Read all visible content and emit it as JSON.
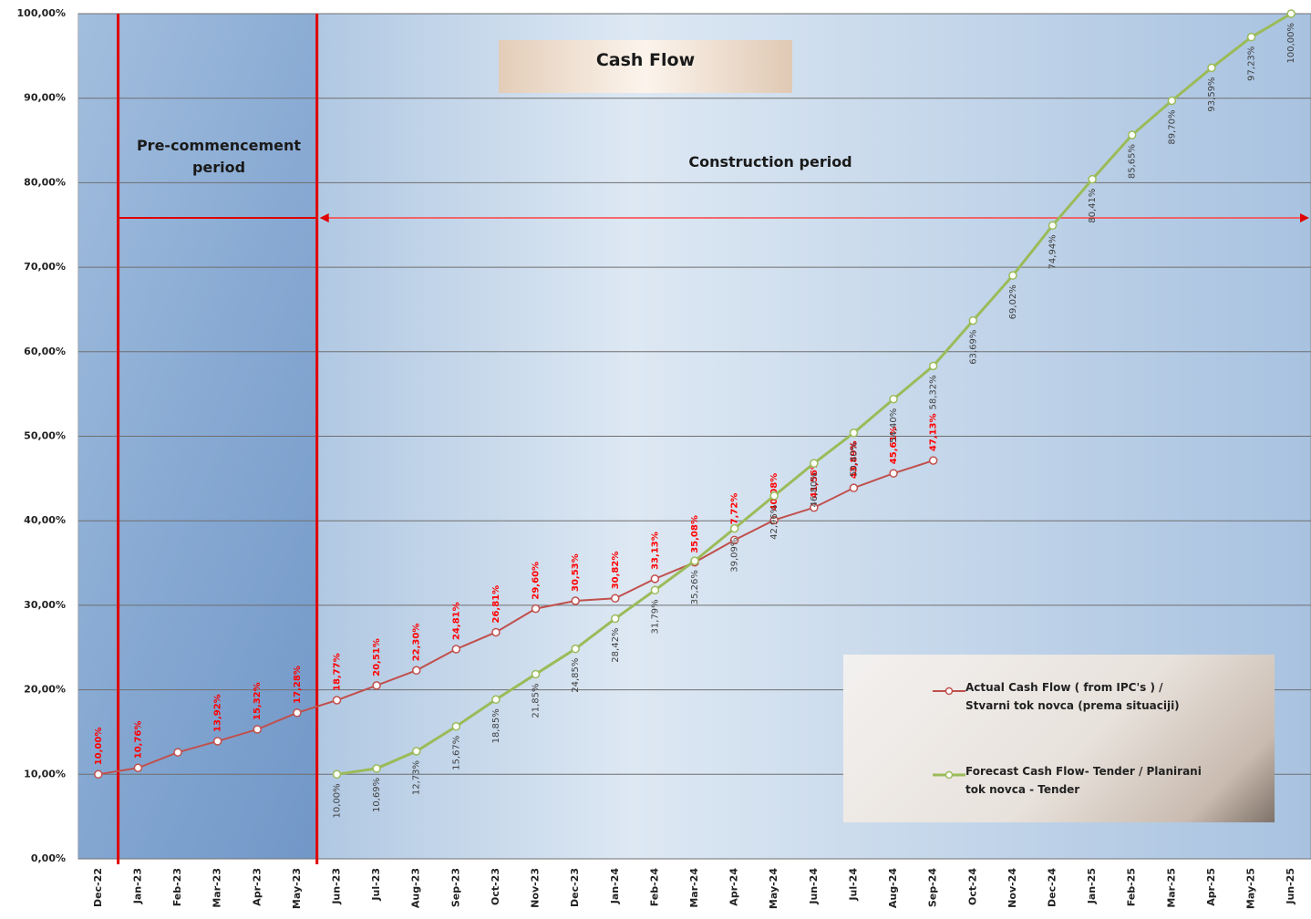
{
  "chart_data": {
    "type": "line",
    "title": "Cash Flow",
    "annotations": [
      "Pre-commencement period",
      "Construction period"
    ],
    "categories": [
      "Dec-22",
      "Jan-23",
      "Feb-23",
      "Mar-23",
      "Apr-23",
      "May-23",
      "Jun-23",
      "Jul-23",
      "Aug-23",
      "Sep-23",
      "Oct-23",
      "Nov-23",
      "Dec-23",
      "Jan-24",
      "Feb-24",
      "Mar-24",
      "Apr-24",
      "May-24",
      "Jun-24",
      "Jul-24",
      "Aug-24",
      "Sep-24",
      "Oct-24",
      "Nov-24",
      "Dec-24",
      "Jan-25",
      "Feb-25",
      "Mar-25",
      "Apr-25",
      "May-25",
      "Jun-25"
    ],
    "series": [
      {
        "name": "Actual Cash Flow ( from IPC's ) / Stvarni tok novca (prema situaciji)",
        "color": "#c0504d",
        "label_color": "#ff0000",
        "values": [
          10.0,
          10.76,
          12.6,
          13.92,
          15.32,
          17.28,
          18.77,
          20.51,
          22.3,
          24.81,
          26.81,
          29.6,
          30.53,
          30.82,
          33.13,
          35.08,
          37.72,
          40.08,
          41.56,
          43.89,
          45.61,
          47.13,
          null,
          null,
          null,
          null,
          null,
          null,
          null,
          null,
          null
        ],
        "value_labels": [
          "10,00%",
          "10,76%",
          null,
          "13,92%",
          "15,32%",
          "17,28%",
          "18,77%",
          "20,51%",
          "22,30%",
          "24,81%",
          "26,81%",
          "29,60%",
          "30,53%",
          "30,82%",
          "33,13%",
          "35,08%",
          "37,72%",
          "40,08%",
          "41,56%",
          "43,89%",
          "45,61%",
          "47,13%",
          null,
          null,
          null,
          null,
          null,
          null,
          null,
          null,
          null
        ]
      },
      {
        "name": "Forecast  Cash Flow- Tender / Planirani tok novca - Tender",
        "color": "#9bbb59",
        "label_color": "#404040",
        "values": [
          null,
          null,
          null,
          null,
          null,
          null,
          10.0,
          10.69,
          12.73,
          15.67,
          18.85,
          21.85,
          24.85,
          28.42,
          31.79,
          35.26,
          39.09,
          42.96,
          46.8,
          50.4,
          54.4,
          58.32,
          63.69,
          69.02,
          74.94,
          80.41,
          85.65,
          89.7,
          93.59,
          97.23,
          100.0
        ],
        "value_labels": [
          null,
          null,
          null,
          null,
          null,
          null,
          "10,00%",
          "10,69%",
          "12,73%",
          "15,67%",
          "18,85%",
          "21,85%",
          "24,85%",
          "28,42%",
          "31,79%",
          "35,26%",
          "39,09%",
          "42,96%",
          "46,80%",
          "50,40%",
          "54,40%",
          "58,32%",
          "63,69%",
          "69,02%",
          "74,94%",
          "80,41%",
          "85,65%",
          "89,70%",
          "93,59%",
          "97,23%",
          "100,00%"
        ]
      }
    ],
    "ylim": [
      0,
      100
    ],
    "yticks": [
      {
        "value": 0,
        "label": "0,00%"
      },
      {
        "value": 10,
        "label": "10,00%"
      },
      {
        "value": 20,
        "label": "20,00%"
      },
      {
        "value": 30,
        "label": "30,00%"
      },
      {
        "value": 40,
        "label": "40,00%"
      },
      {
        "value": 50,
        "label": "50,00%"
      },
      {
        "value": 60,
        "label": "60,00%"
      },
      {
        "value": 70,
        "label": "70,00%"
      },
      {
        "value": 80,
        "label": "80,00%"
      },
      {
        "value": 90,
        "label": "90,00%"
      },
      {
        "value": 100,
        "label": "100,00%"
      }
    ],
    "grid": true
  }
}
